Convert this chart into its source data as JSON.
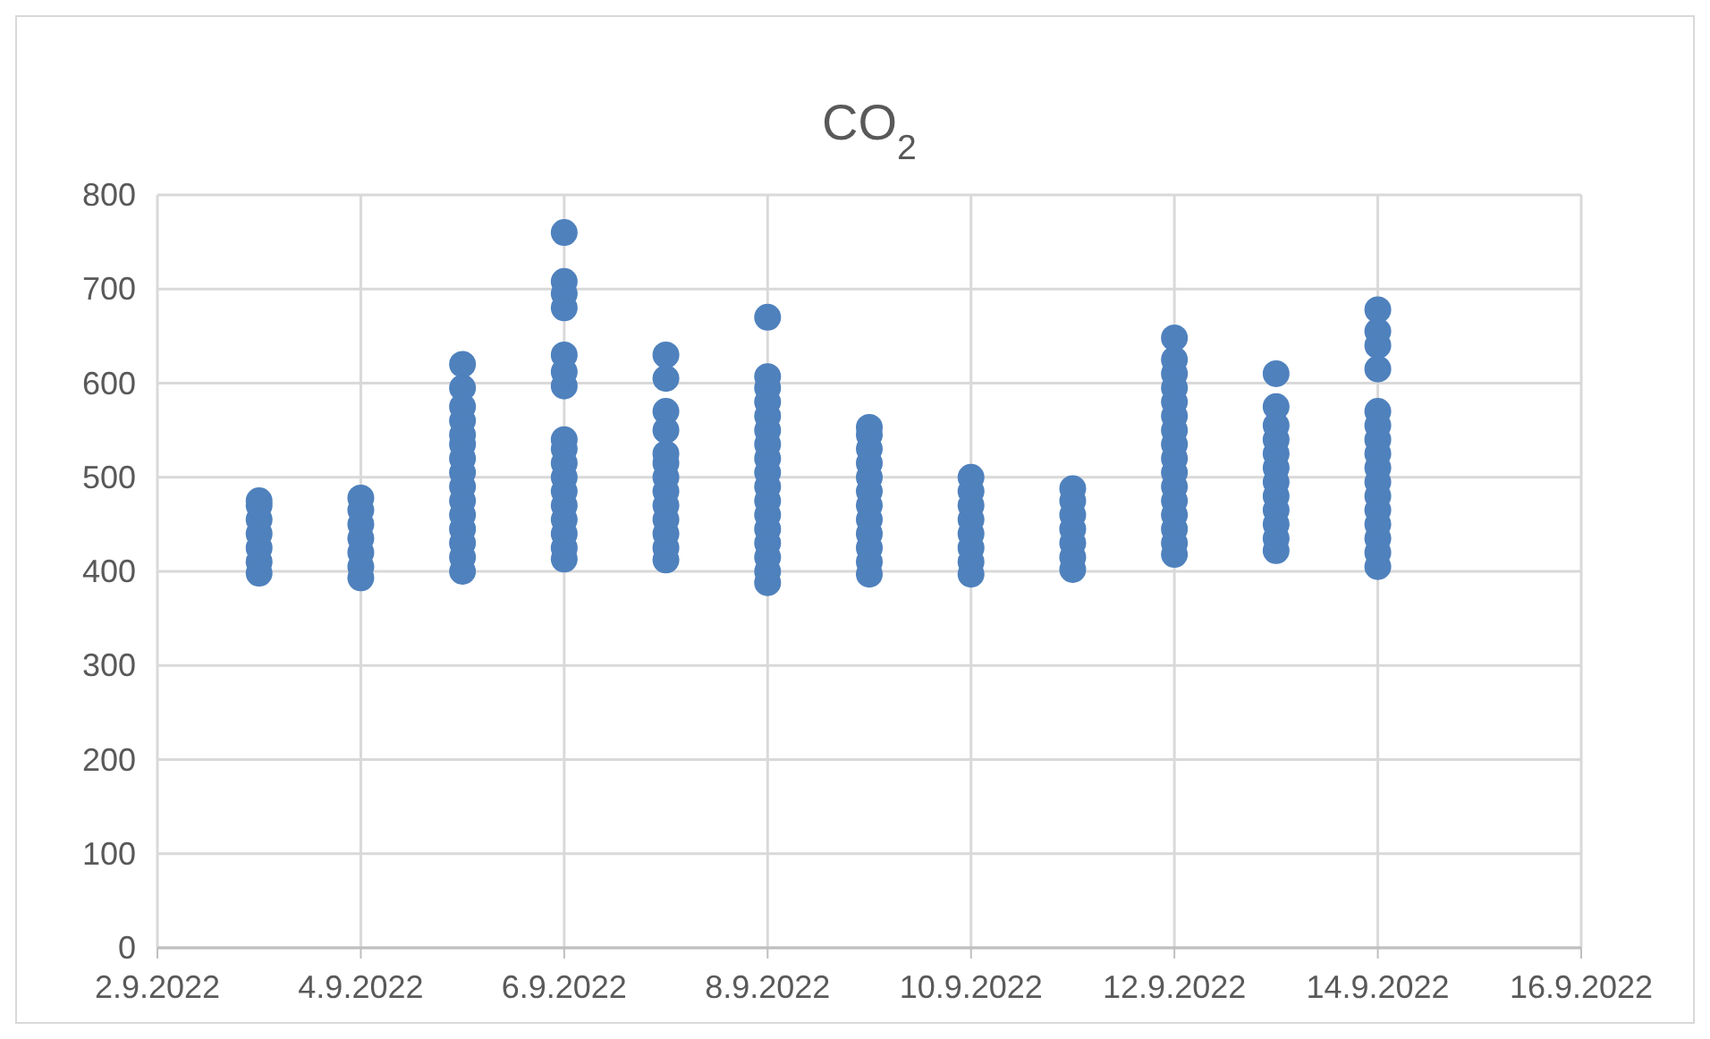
{
  "chart_data": {
    "type": "scatter",
    "title": "CO$_{2}$",
    "xlim": [
      "2022-09-02",
      "2022-09-16"
    ],
    "xticks": [
      {
        "value": "2022-09-02",
        "label": "2.9.2022"
      },
      {
        "value": "2022-09-04",
        "label": "4.9.2022"
      },
      {
        "value": "2022-09-06",
        "label": "6.9.2022"
      },
      {
        "value": "2022-09-08",
        "label": "8.9.2022"
      },
      {
        "value": "2022-09-10",
        "label": "10.9.2022"
      },
      {
        "value": "2022-09-12",
        "label": "12.9.2022"
      },
      {
        "value": "2022-09-14",
        "label": "14.9.2022"
      },
      {
        "value": "2022-09-16",
        "label": "16.9.2022"
      }
    ],
    "ylim": [
      0,
      800
    ],
    "yticks": [
      0,
      100,
      200,
      300,
      400,
      500,
      600,
      700,
      800
    ],
    "grid": true,
    "marker": "circle",
    "series": [
      {
        "color": "#4f81bd",
        "x": [
          "2022-09-03",
          "2022-09-03",
          "2022-09-03",
          "2022-09-03",
          "2022-09-03",
          "2022-09-03",
          "2022-09-03",
          "2022-09-04",
          "2022-09-04",
          "2022-09-04",
          "2022-09-04",
          "2022-09-04",
          "2022-09-04",
          "2022-09-04",
          "2022-09-05",
          "2022-09-05",
          "2022-09-05",
          "2022-09-05",
          "2022-09-05",
          "2022-09-05",
          "2022-09-05",
          "2022-09-05",
          "2022-09-05",
          "2022-09-05",
          "2022-09-05",
          "2022-09-05",
          "2022-09-05",
          "2022-09-05",
          "2022-09-05",
          "2022-09-06",
          "2022-09-06",
          "2022-09-06",
          "2022-09-06",
          "2022-09-06",
          "2022-09-06",
          "2022-09-06",
          "2022-09-06",
          "2022-09-06",
          "2022-09-06",
          "2022-09-06",
          "2022-09-06",
          "2022-09-06",
          "2022-09-06",
          "2022-09-06",
          "2022-09-06",
          "2022-09-06",
          "2022-09-07",
          "2022-09-07",
          "2022-09-07",
          "2022-09-07",
          "2022-09-07",
          "2022-09-07",
          "2022-09-07",
          "2022-09-07",
          "2022-09-07",
          "2022-09-07",
          "2022-09-07",
          "2022-09-07",
          "2022-09-07",
          "2022-09-08",
          "2022-09-08",
          "2022-09-08",
          "2022-09-08",
          "2022-09-08",
          "2022-09-08",
          "2022-09-08",
          "2022-09-08",
          "2022-09-08",
          "2022-09-08",
          "2022-09-08",
          "2022-09-08",
          "2022-09-08",
          "2022-09-08",
          "2022-09-08",
          "2022-09-08",
          "2022-09-08",
          "2022-09-09",
          "2022-09-09",
          "2022-09-09",
          "2022-09-09",
          "2022-09-09",
          "2022-09-09",
          "2022-09-09",
          "2022-09-09",
          "2022-09-09",
          "2022-09-09",
          "2022-09-09",
          "2022-09-09",
          "2022-09-10",
          "2022-09-10",
          "2022-09-10",
          "2022-09-10",
          "2022-09-10",
          "2022-09-10",
          "2022-09-10",
          "2022-09-10",
          "2022-09-11",
          "2022-09-11",
          "2022-09-11",
          "2022-09-11",
          "2022-09-11",
          "2022-09-11",
          "2022-09-11",
          "2022-09-12",
          "2022-09-12",
          "2022-09-12",
          "2022-09-12",
          "2022-09-12",
          "2022-09-12",
          "2022-09-12",
          "2022-09-12",
          "2022-09-12",
          "2022-09-12",
          "2022-09-12",
          "2022-09-12",
          "2022-09-12",
          "2022-09-12",
          "2022-09-12",
          "2022-09-12",
          "2022-09-13",
          "2022-09-13",
          "2022-09-13",
          "2022-09-13",
          "2022-09-13",
          "2022-09-13",
          "2022-09-13",
          "2022-09-13",
          "2022-09-13",
          "2022-09-13",
          "2022-09-13",
          "2022-09-13",
          "2022-09-14",
          "2022-09-14",
          "2022-09-14",
          "2022-09-14",
          "2022-09-14",
          "2022-09-14",
          "2022-09-14",
          "2022-09-14",
          "2022-09-14",
          "2022-09-14",
          "2022-09-14",
          "2022-09-14",
          "2022-09-14",
          "2022-09-14",
          "2022-09-14",
          "2022-09-14"
        ],
        "values": [
          398,
          410,
          425,
          440,
          455,
          470,
          475,
          393,
          405,
          420,
          435,
          450,
          465,
          478,
          400,
          415,
          430,
          445,
          460,
          475,
          490,
          505,
          520,
          535,
          545,
          560,
          575,
          595,
          620,
          413,
          425,
          440,
          455,
          470,
          485,
          500,
          515,
          530,
          540,
          597,
          612,
          630,
          680,
          695,
          708,
          760,
          412,
          425,
          440,
          455,
          470,
          485,
          500,
          515,
          525,
          550,
          570,
          605,
          630,
          388,
          400,
          415,
          430,
          445,
          460,
          475,
          490,
          505,
          520,
          535,
          550,
          565,
          580,
          595,
          607,
          670,
          397,
          410,
          425,
          440,
          455,
          470,
          485,
          500,
          515,
          530,
          545,
          553,
          397,
          410,
          425,
          440,
          455,
          470,
          485,
          500,
          402,
          415,
          430,
          445,
          460,
          475,
          488,
          418,
          430,
          445,
          460,
          475,
          490,
          505,
          520,
          535,
          550,
          565,
          580,
          595,
          610,
          625,
          648,
          422,
          435,
          450,
          465,
          480,
          495,
          510,
          525,
          540,
          555,
          575,
          610,
          405,
          420,
          435,
          450,
          465,
          480,
          495,
          510,
          525,
          540,
          555,
          570,
          615,
          640,
          655,
          678
        ]
      }
    ]
  }
}
